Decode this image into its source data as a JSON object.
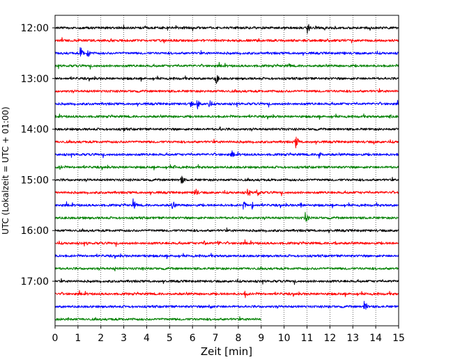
{
  "chart_data": {
    "type": "line",
    "title": "",
    "xlabel": "Zeit  [min]",
    "ylabel": "UTC (Lokalzeit = UTC + 01:00)",
    "xlim": [
      0,
      15
    ],
    "x_ticks": [
      "0",
      "1",
      "2",
      "3",
      "4",
      "5",
      "6",
      "7",
      "8",
      "9",
      "10",
      "11",
      "12",
      "13",
      "14",
      "15"
    ],
    "y_ticks": [
      "12:00",
      "13:00",
      "14:00",
      "15:00",
      "16:00",
      "17:00"
    ],
    "grid": "vertical dotted",
    "line_interval_minutes": 15,
    "trace_colors": [
      "#000000",
      "#ff0000",
      "#0000ff",
      "#008000"
    ],
    "traces": [
      {
        "start": "12:00",
        "end_min": 15,
        "color": "#000000",
        "events": [
          {
            "t": 11.0,
            "amp": 10
          },
          {
            "t": 5.6,
            "amp": 3
          }
        ]
      },
      {
        "start": "12:15",
        "end_min": 15,
        "color": "#ff0000",
        "events": [
          {
            "t": 15.0,
            "amp": 4
          }
        ]
      },
      {
        "start": "12:30",
        "end_min": 15,
        "color": "#0000ff",
        "events": [
          {
            "t": 1.1,
            "amp": 11
          },
          {
            "t": 1.4,
            "amp": 9
          },
          {
            "t": 12.6,
            "amp": 3
          }
        ]
      },
      {
        "start": "12:45",
        "end_min": 15,
        "color": "#008000",
        "events": [
          {
            "t": 10.2,
            "amp": 4
          }
        ]
      },
      {
        "start": "13:00",
        "end_min": 15,
        "color": "#000000",
        "events": [
          {
            "t": 7.0,
            "amp": 11
          }
        ]
      },
      {
        "start": "13:15",
        "end_min": 15,
        "color": "#ff0000",
        "events": []
      },
      {
        "start": "13:30",
        "end_min": 15,
        "color": "#0000ff",
        "events": [
          {
            "t": 6.2,
            "amp": 9
          },
          {
            "t": 6.7,
            "amp": 9
          },
          {
            "t": 5.9,
            "amp": 6
          }
        ]
      },
      {
        "start": "13:45",
        "end_min": 15,
        "color": "#008000",
        "events": [
          {
            "t": 14.6,
            "amp": 5
          }
        ]
      },
      {
        "start": "14:00",
        "end_min": 15,
        "color": "#000000",
        "events": [
          {
            "t": 3.0,
            "amp": 5
          },
          {
            "t": 7.2,
            "amp": 4
          },
          {
            "t": 9.9,
            "amp": 3
          }
        ]
      },
      {
        "start": "14:15",
        "end_min": 15,
        "color": "#ff0000",
        "events": [
          {
            "t": 10.5,
            "amp": 11
          },
          {
            "t": 3.1,
            "amp": 3
          },
          {
            "t": 13.9,
            "amp": 4
          }
        ]
      },
      {
        "start": "14:30",
        "end_min": 15,
        "color": "#0000ff",
        "events": [
          {
            "t": 7.7,
            "amp": 7
          },
          {
            "t": 11.5,
            "amp": 9
          },
          {
            "t": 3.1,
            "amp": 4
          }
        ]
      },
      {
        "start": "14:45",
        "end_min": 15,
        "color": "#008000",
        "events": [
          {
            "t": 0.2,
            "amp": 5
          },
          {
            "t": 5.2,
            "amp": 4
          }
        ]
      },
      {
        "start": "15:00",
        "end_min": 15,
        "color": "#000000",
        "events": [
          {
            "t": 5.5,
            "amp": 9
          }
        ]
      },
      {
        "start": "15:15",
        "end_min": 15,
        "color": "#ff0000",
        "events": [
          {
            "t": 6.1,
            "amp": 9
          },
          {
            "t": 8.4,
            "amp": 7
          },
          {
            "t": 8.8,
            "amp": 8
          }
        ]
      },
      {
        "start": "15:30",
        "end_min": 15,
        "color": "#0000ff",
        "events": [
          {
            "t": 3.4,
            "amp": 10
          },
          {
            "t": 5.1,
            "amp": 10
          },
          {
            "t": 8.2,
            "amp": 9
          },
          {
            "t": 8.6,
            "amp": 7
          },
          {
            "t": 10.7,
            "amp": 6
          }
        ]
      },
      {
        "start": "15:45",
        "end_min": 15,
        "color": "#008000",
        "events": [
          {
            "t": 10.9,
            "amp": 11
          },
          {
            "t": 1.2,
            "amp": 3
          }
        ]
      },
      {
        "start": "16:00",
        "end_min": 15,
        "color": "#000000",
        "events": []
      },
      {
        "start": "16:15",
        "end_min": 15,
        "color": "#ff0000",
        "events": [
          {
            "t": 6.5,
            "amp": 7
          },
          {
            "t": 7.1,
            "amp": 6
          },
          {
            "t": 12.2,
            "amp": 5
          },
          {
            "t": 1.4,
            "amp": 3
          }
        ]
      },
      {
        "start": "16:30",
        "end_min": 15,
        "color": "#0000ff",
        "events": [
          {
            "t": 3.9,
            "amp": 4
          },
          {
            "t": 5.2,
            "amp": 3
          }
        ]
      },
      {
        "start": "16:45",
        "end_min": 15,
        "color": "#008000",
        "events": [
          {
            "t": 2.6,
            "amp": 4
          },
          {
            "t": 3.8,
            "amp": 3
          }
        ]
      },
      {
        "start": "17:00",
        "end_min": 15,
        "color": "#000000",
        "events": []
      },
      {
        "start": "17:15",
        "end_min": 15,
        "color": "#ff0000",
        "events": [
          {
            "t": 8.3,
            "amp": 6
          }
        ]
      },
      {
        "start": "17:30",
        "end_min": 15,
        "color": "#0000ff",
        "events": [
          {
            "t": 6.7,
            "amp": 7
          },
          {
            "t": 13.5,
            "amp": 11
          },
          {
            "t": 11.9,
            "amp": 3
          }
        ]
      },
      {
        "start": "17:45",
        "end_min": 9,
        "color": "#008000",
        "events": [
          {
            "t": 0.5,
            "amp": 5
          },
          {
            "t": 2.5,
            "amp": 3
          }
        ]
      }
    ]
  }
}
